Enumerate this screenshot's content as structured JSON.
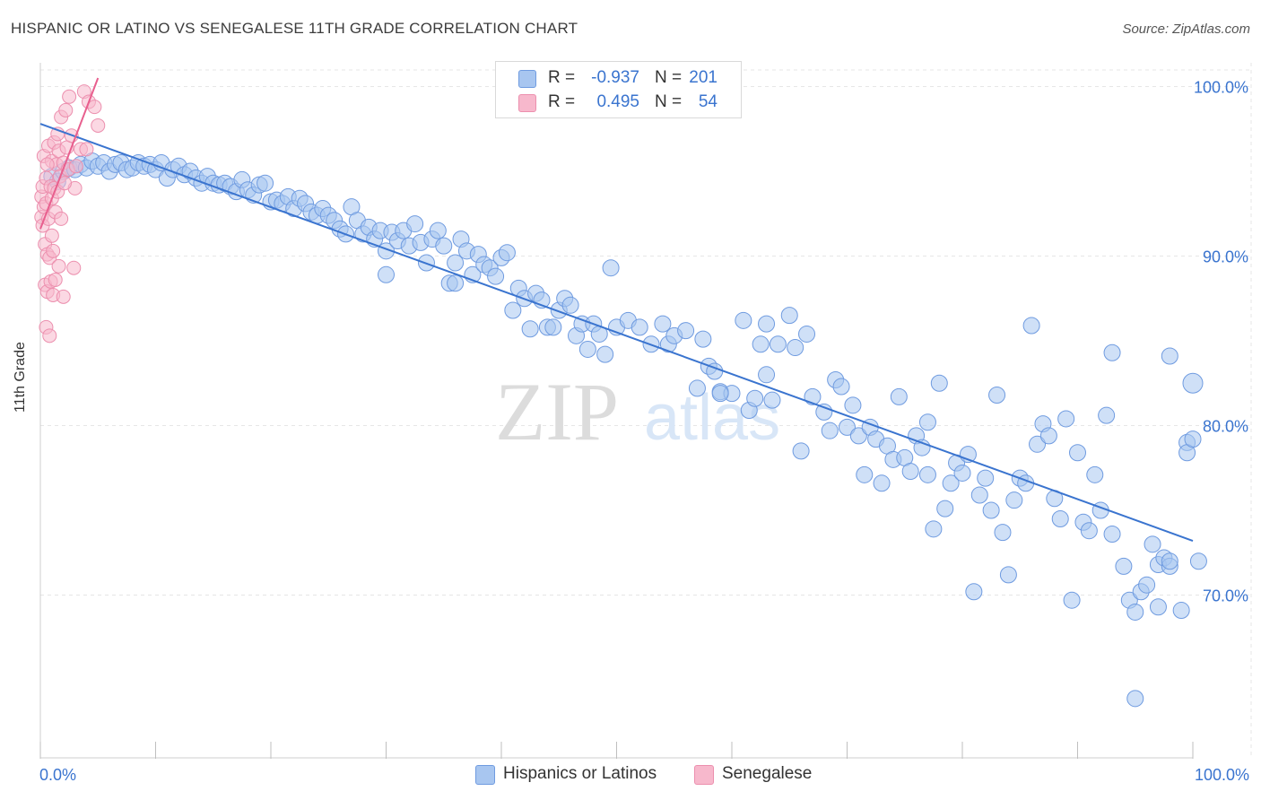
{
  "title": "HISPANIC OR LATINO VS SENEGALESE 11TH GRADE CORRELATION CHART",
  "source": "Source: ZipAtlas.com",
  "watermark": {
    "zip": "ZIP",
    "atlas": "atlas"
  },
  "legend": {
    "rows": [
      {
        "name": "Hispanics or Latinos",
        "r_label": "R =",
        "r_value": "-0.937",
        "n_label": "N =",
        "n_value": "201",
        "color": "#a8c6f0",
        "stroke": "#6f9be0"
      },
      {
        "name": "Senegalese",
        "r_label": "R =",
        "r_value": "0.495",
        "n_label": "N =",
        "n_value": "54",
        "color": "#f7b8cc",
        "stroke": "#ec8fae"
      }
    ]
  },
  "chart_data": {
    "type": "scatter",
    "title": "HISPANIC OR LATINO VS SENEGALESE 11TH GRADE CORRELATION CHART",
    "xlabel": "",
    "ylabel": "11th Grade",
    "xlim": [
      0,
      100
    ],
    "ylim": [
      60.4,
      101.4
    ],
    "x_tick_labels": [
      "0.0%",
      "100.0%"
    ],
    "y_ticks": [
      70,
      80,
      90,
      100
    ],
    "y_tick_labels": [
      "70.0%",
      "80.0%",
      "90.0%",
      "100.0%"
    ],
    "grid": true,
    "series": [
      {
        "name": "Hispanics or Latinos",
        "color": "#a8c6f0",
        "stroke": "#6f9be0",
        "trend": {
          "x": [
            0,
            100
          ],
          "y": [
            97.8,
            73.2
          ],
          "color": "#3a74cf"
        },
        "points": [
          [
            1,
            94.7
          ],
          [
            1.5,
            94.4
          ],
          [
            2,
            95
          ],
          [
            2.5,
            95.2
          ],
          [
            3,
            95.1
          ],
          [
            3.5,
            95.4
          ],
          [
            4,
            95.2
          ],
          [
            4.5,
            95.6
          ],
          [
            5,
            95.3
          ],
          [
            5.5,
            95.5
          ],
          [
            6,
            95
          ],
          [
            6.5,
            95.4
          ],
          [
            7,
            95.5
          ],
          [
            7.5,
            95.1
          ],
          [
            8,
            95.2
          ],
          [
            8.5,
            95.5
          ],
          [
            9,
            95.3
          ],
          [
            9.5,
            95.4
          ],
          [
            10,
            95.1
          ],
          [
            10.5,
            95.5
          ],
          [
            11,
            94.6
          ],
          [
            11.5,
            95.1
          ],
          [
            12,
            95.3
          ],
          [
            12.5,
            94.8
          ],
          [
            13,
            95
          ],
          [
            13.5,
            94.6
          ],
          [
            14,
            94.3
          ],
          [
            14.5,
            94.7
          ],
          [
            15,
            94.3
          ],
          [
            15.5,
            94.2
          ],
          [
            16,
            94.3
          ],
          [
            16.5,
            94.1
          ],
          [
            17,
            93.8
          ],
          [
            17.5,
            94.5
          ],
          [
            18,
            93.9
          ],
          [
            18.5,
            93.6
          ],
          [
            19,
            94.2
          ],
          [
            19.5,
            94.3
          ],
          [
            20,
            93.2
          ],
          [
            20.5,
            93.3
          ],
          [
            21,
            93.1
          ],
          [
            21.5,
            93.5
          ],
          [
            22,
            92.8
          ],
          [
            22.5,
            93.4
          ],
          [
            23,
            93.1
          ],
          [
            23.5,
            92.6
          ],
          [
            24,
            92.4
          ],
          [
            24.5,
            92.8
          ],
          [
            25,
            92.4
          ],
          [
            25.5,
            92.1
          ],
          [
            26,
            91.6
          ],
          [
            26.5,
            91.3
          ],
          [
            27,
            92.9
          ],
          [
            27.5,
            92.1
          ],
          [
            28,
            91.3
          ],
          [
            28.5,
            91.7
          ],
          [
            29,
            91
          ],
          [
            29.5,
            91.5
          ],
          [
            30,
            90.3
          ],
          [
            30.5,
            91.4
          ],
          [
            31,
            90.9
          ],
          [
            31.5,
            91.5
          ],
          [
            32,
            90.6
          ],
          [
            32.5,
            91.9
          ],
          [
            33,
            90.8
          ],
          [
            33.5,
            89.6
          ],
          [
            34,
            91
          ],
          [
            34.5,
            91.5
          ],
          [
            35,
            90.6
          ],
          [
            35.5,
            88.4
          ],
          [
            36,
            89.6
          ],
          [
            36.5,
            91
          ],
          [
            37,
            90.3
          ],
          [
            37.5,
            88.9
          ],
          [
            38,
            90.1
          ],
          [
            38.5,
            89.5
          ],
          [
            39,
            89.3
          ],
          [
            39.5,
            88.8
          ],
          [
            40,
            89.9
          ],
          [
            40.5,
            90.2
          ],
          [
            41,
            86.8
          ],
          [
            41.5,
            88.1
          ],
          [
            42,
            87.5
          ],
          [
            42.5,
            85.7
          ],
          [
            43,
            87.8
          ],
          [
            43.5,
            87.4
          ],
          [
            44,
            85.8
          ],
          [
            44.5,
            85.8
          ],
          [
            45,
            86.8
          ],
          [
            45.5,
            87.5
          ],
          [
            46,
            87.1
          ],
          [
            46.5,
            85.3
          ],
          [
            47,
            86
          ],
          [
            47.5,
            84.5
          ],
          [
            48,
            86
          ],
          [
            48.5,
            85.4
          ],
          [
            49,
            84.2
          ],
          [
            49.5,
            89.3
          ],
          [
            50,
            85.8
          ],
          [
            51,
            86.2
          ],
          [
            52,
            85.8
          ],
          [
            53,
            84.8
          ],
          [
            54,
            86
          ],
          [
            54.5,
            84.8
          ],
          [
            55,
            85.3
          ],
          [
            56,
            85.6
          ],
          [
            57,
            82.2
          ],
          [
            57.5,
            85.1
          ],
          [
            58,
            83.5
          ],
          [
            58.5,
            83.2
          ],
          [
            59,
            82
          ],
          [
            60,
            81.9
          ],
          [
            61,
            86.2
          ],
          [
            61.5,
            80.9
          ],
          [
            62,
            81.6
          ],
          [
            62.5,
            84.8
          ],
          [
            63,
            86
          ],
          [
            63.5,
            81.5
          ],
          [
            64,
            84.8
          ],
          [
            65,
            86.5
          ],
          [
            65.5,
            84.6
          ],
          [
            66,
            78.5
          ],
          [
            66.5,
            85.4
          ],
          [
            67,
            81.7
          ],
          [
            68,
            80.8
          ],
          [
            68.5,
            79.7
          ],
          [
            69,
            82.7
          ],
          [
            69.5,
            82.3
          ],
          [
            70,
            79.9
          ],
          [
            70.5,
            81.2
          ],
          [
            71,
            79.4
          ],
          [
            71.5,
            77.1
          ],
          [
            72,
            79.9
          ],
          [
            72.5,
            79.2
          ],
          [
            73,
            76.6
          ],
          [
            73.5,
            78.8
          ],
          [
            74,
            78
          ],
          [
            74.5,
            81.7
          ],
          [
            75,
            78.1
          ],
          [
            75.5,
            77.3
          ],
          [
            76,
            79.4
          ],
          [
            76.5,
            78.7
          ],
          [
            77,
            77.1
          ],
          [
            77.5,
            73.9
          ],
          [
            78,
            82.5
          ],
          [
            78.5,
            75.1
          ],
          [
            79,
            76.6
          ],
          [
            79.5,
            77.8
          ],
          [
            80,
            77.2
          ],
          [
            80.5,
            78.3
          ],
          [
            81,
            70.2
          ],
          [
            81.5,
            75.9
          ],
          [
            82,
            76.9
          ],
          [
            82.5,
            75
          ],
          [
            83,
            81.8
          ],
          [
            83.5,
            73.7
          ],
          [
            84,
            71.2
          ],
          [
            84.5,
            75.6
          ],
          [
            85,
            76.9
          ],
          [
            85.5,
            76.6
          ],
          [
            86,
            85.9
          ],
          [
            86.5,
            78.9
          ],
          [
            87,
            80.1
          ],
          [
            87.5,
            79.4
          ],
          [
            88,
            75.7
          ],
          [
            88.5,
            74.5
          ],
          [
            89,
            80.4
          ],
          [
            89.5,
            69.7
          ],
          [
            90,
            78.4
          ],
          [
            90.5,
            74.3
          ],
          [
            91,
            73.8
          ],
          [
            91.5,
            77.1
          ],
          [
            92,
            75
          ],
          [
            92.5,
            80.6
          ],
          [
            93,
            73.6
          ],
          [
            93,
            84.3
          ],
          [
            94,
            71.7
          ],
          [
            94.5,
            69.7
          ],
          [
            95,
            69
          ],
          [
            95.5,
            70.2
          ],
          [
            96,
            70.6
          ],
          [
            96.5,
            73
          ],
          [
            97,
            71.8
          ],
          [
            97.5,
            72.2
          ],
          [
            98,
            71.7
          ],
          [
            98,
            72
          ],
          [
            98,
            84.1
          ],
          [
            99,
            69.1
          ],
          [
            99.5,
            79
          ],
          [
            99.5,
            78.4
          ],
          [
            100,
            82.5
          ],
          [
            100,
            79.2
          ],
          [
            100.5,
            72
          ],
          [
            95,
            63.9
          ],
          [
            97,
            69.3
          ],
          [
            30,
            88.9
          ],
          [
            59,
            81.9
          ],
          [
            36,
            88.4
          ],
          [
            77,
            80.2
          ],
          [
            63,
            83
          ]
        ]
      },
      {
        "name": "Senegalese",
        "color": "#f7b8cc",
        "stroke": "#ec8fae",
        "trend": {
          "x": [
            0,
            5
          ],
          "y": [
            91.6,
            100.5
          ],
          "color": "#e85f8e"
        },
        "points": [
          [
            0.1,
            93.5
          ],
          [
            0.1,
            92.3
          ],
          [
            0.2,
            94.1
          ],
          [
            0.2,
            91.8
          ],
          [
            0.3,
            95.9
          ],
          [
            0.3,
            92.9
          ],
          [
            0.4,
            90.7
          ],
          [
            0.4,
            88.3
          ],
          [
            0.5,
            94.6
          ],
          [
            0.5,
            85.8
          ],
          [
            0.5,
            93.1
          ],
          [
            0.6,
            90.1
          ],
          [
            0.6,
            87.9
          ],
          [
            0.7,
            96.5
          ],
          [
            0.7,
            92.2
          ],
          [
            0.8,
            89.9
          ],
          [
            0.8,
            85.3
          ],
          [
            0.9,
            94.1
          ],
          [
            0.9,
            88.5
          ],
          [
            1,
            95.6
          ],
          [
            1,
            93.4
          ],
          [
            1,
            91.2
          ],
          [
            1.1,
            90.3
          ],
          [
            1.1,
            87.7
          ],
          [
            1.2,
            96.7
          ],
          [
            1.2,
            94
          ],
          [
            1.3,
            92.6
          ],
          [
            1.3,
            88.6
          ],
          [
            1.4,
            95.4
          ],
          [
            1.5,
            97.2
          ],
          [
            1.5,
            93.8
          ],
          [
            1.6,
            96.2
          ],
          [
            1.6,
            89.4
          ],
          [
            1.7,
            94.7
          ],
          [
            1.8,
            98.2
          ],
          [
            1.8,
            92.2
          ],
          [
            2,
            95.5
          ],
          [
            2,
            87.6
          ],
          [
            2.2,
            98.6
          ],
          [
            2.3,
            96.4
          ],
          [
            2.4,
            95.1
          ],
          [
            2.5,
            99.4
          ],
          [
            2.7,
            97.1
          ],
          [
            2.9,
            89.3
          ],
          [
            3,
            94
          ],
          [
            3.1,
            95.3
          ],
          [
            3.5,
            96.3
          ],
          [
            3.8,
            99.7
          ],
          [
            4,
            96.3
          ],
          [
            4.2,
            99.1
          ],
          [
            4.7,
            98.8
          ],
          [
            5,
            97.7
          ],
          [
            0.6,
            95.4
          ],
          [
            2.1,
            94.3
          ]
        ]
      }
    ]
  }
}
